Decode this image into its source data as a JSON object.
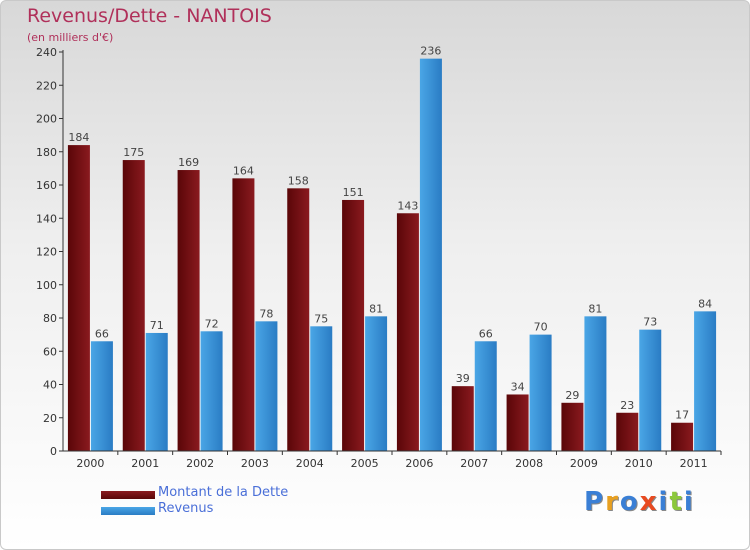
{
  "header": {
    "title": "Revenus/Dette - NANTOIS",
    "subtitle": "(en milliers d'€)"
  },
  "colors": {
    "debt": "#8a1a1f",
    "debt_dark": "#5a0608",
    "revenue": "#4aa6e6",
    "revenue_dark": "#2a7cc4",
    "axis": "#333333"
  },
  "legend": {
    "debt_label": "Montant de la Dette",
    "revenue_label": "Revenus"
  },
  "logo": {
    "text": "Proxiti",
    "letter_colors": [
      "#3a7fd5",
      "#e8a020",
      "#3a7fd5",
      "#e84a20",
      "#3a7fd5",
      "#8cc83c",
      "#3a7fd5"
    ]
  },
  "chart_data": {
    "type": "bar",
    "title": "Revenus/Dette - NANTOIS",
    "ylabel": "(en milliers d'€)",
    "xlabel": "",
    "categories": [
      "2000",
      "2001",
      "2002",
      "2003",
      "2004",
      "2005",
      "2006",
      "2007",
      "2008",
      "2009",
      "2010",
      "2011"
    ],
    "series": [
      {
        "name": "Montant de la Dette",
        "values": [
          184,
          175,
          169,
          164,
          158,
          151,
          143,
          39,
          34,
          29,
          23,
          17
        ]
      },
      {
        "name": "Revenus",
        "values": [
          66,
          71,
          72,
          78,
          75,
          81,
          236,
          66,
          70,
          81,
          73,
          84
        ]
      }
    ],
    "ylim": [
      0,
      240
    ],
    "yticks": [
      0,
      20,
      40,
      60,
      80,
      100,
      120,
      140,
      160,
      180,
      200,
      220,
      240
    ],
    "grid": false,
    "legend_position": "bottom-left"
  }
}
